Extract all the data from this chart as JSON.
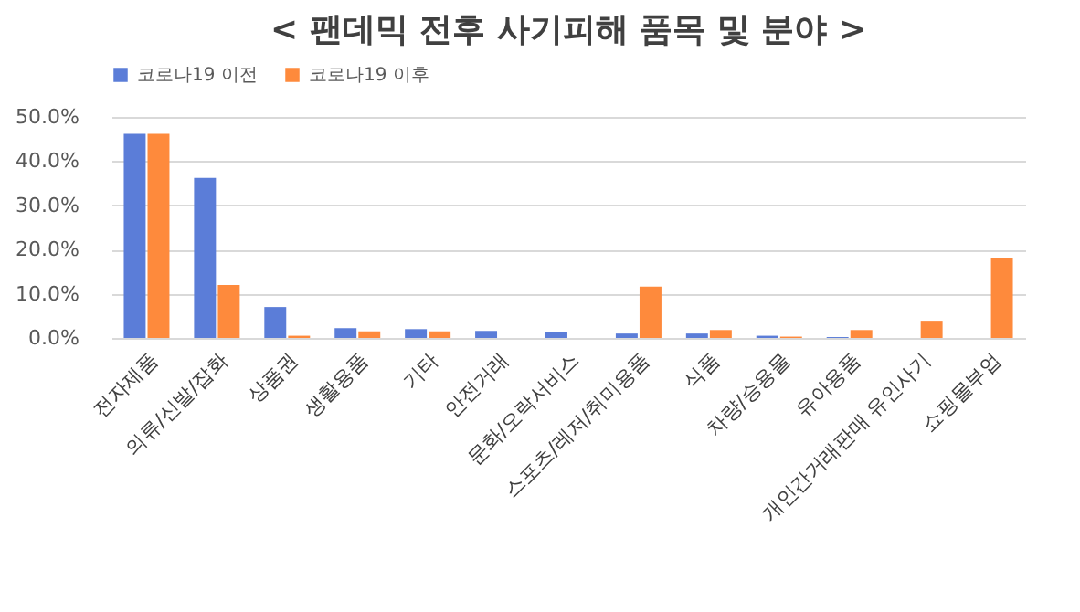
{
  "chart_data": {
    "type": "bar",
    "title": "< 팬데믹 전후 사기피해 품목 및 분야 >",
    "categories": [
      "전자제품",
      "의류/신발/잡화",
      "상품권",
      "생활용품",
      "기타",
      "안전거래",
      "문화/오락서비스",
      "스포츠/레저/취미용품",
      "식품",
      "차량/승용물",
      "유아용품",
      "개인간거래판매 유인사기",
      "쇼핑몰부업"
    ],
    "series": [
      {
        "name": "코로나19 이전",
        "color": "#5b7dd8",
        "values": [
          46.2,
          36.2,
          7.0,
          2.2,
          2.0,
          1.6,
          1.4,
          1.0,
          1.0,
          0.5,
          0.2,
          0,
          0
        ]
      },
      {
        "name": "코로나19 이후",
        "color": "#fe8a3c",
        "values": [
          46.2,
          12.0,
          0.5,
          1.5,
          1.5,
          0,
          0,
          11.6,
          1.8,
          0.3,
          1.8,
          3.9,
          18.2
        ]
      }
    ],
    "ylim": [
      0,
      50
    ],
    "yticks": [
      {
        "value": 0,
        "label": "0.0%"
      },
      {
        "value": 10,
        "label": "10.0%"
      },
      {
        "value": 20,
        "label": "20.0%"
      },
      {
        "value": 30,
        "label": "30.0%"
      },
      {
        "value": 40,
        "label": "40.0%"
      },
      {
        "value": 50,
        "label": "50.0%"
      }
    ],
    "grid": "y",
    "legend": "top"
  }
}
